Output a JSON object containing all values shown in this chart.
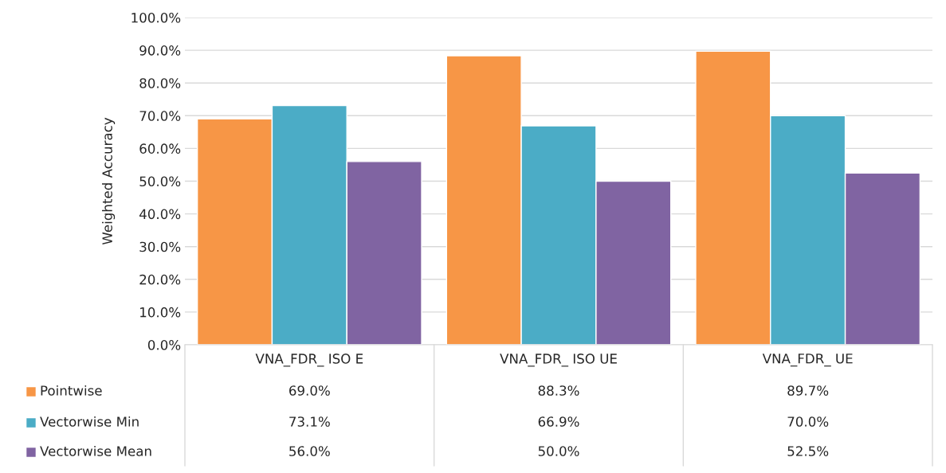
{
  "chart_data": {
    "type": "bar",
    "ylabel": "Weighted Accuracy",
    "categories": [
      "VNA_FDR_ ISO E",
      "VNA_FDR_ ISO UE",
      "VNA_FDR_ UE"
    ],
    "series": [
      {
        "name": "Pointwise",
        "color": "#f79646",
        "values": [
          69.0,
          88.3,
          89.7
        ],
        "value_labels": [
          "69.0%",
          "88.3%",
          "89.7%"
        ]
      },
      {
        "name": "Vectorwise Min",
        "color": "#4bacc6",
        "values": [
          73.1,
          66.9,
          70.0
        ],
        "value_labels": [
          "73.1%",
          "66.9%",
          "70.0%"
        ]
      },
      {
        "name": "Vectorwise Mean",
        "color": "#8064a2",
        "values": [
          56.0,
          50.0,
          52.5
        ],
        "value_labels": [
          "56.0%",
          "50.0%",
          "52.5%"
        ]
      }
    ],
    "ylim": [
      0,
      100
    ],
    "yticks": [
      {
        "value": 0,
        "label": "0.0%"
      },
      {
        "value": 10,
        "label": "10.0%"
      },
      {
        "value": 20,
        "label": "20.0%"
      },
      {
        "value": 30,
        "label": "30.0%"
      },
      {
        "value": 40,
        "label": "40.0%"
      },
      {
        "value": 50,
        "label": "50.0%"
      },
      {
        "value": 60,
        "label": "60.0%"
      },
      {
        "value": 70,
        "label": "70.0%"
      },
      {
        "value": 80,
        "label": "80.0%"
      },
      {
        "value": 90,
        "label": "90.0%"
      },
      {
        "value": 100,
        "label": "100.0%"
      }
    ],
    "grid": "y",
    "legend": "bottom"
  }
}
